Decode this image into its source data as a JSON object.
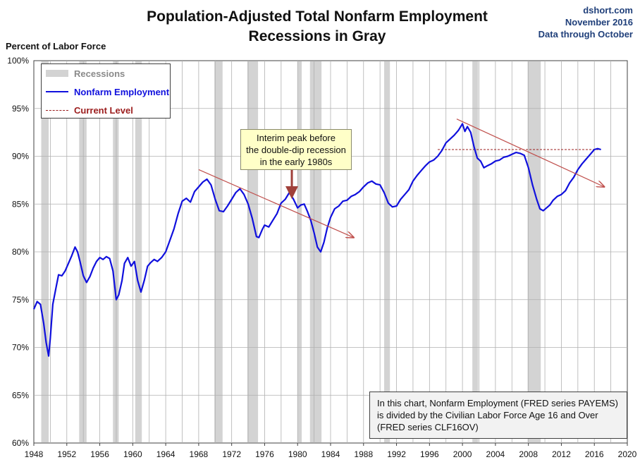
{
  "header": {
    "title_line1": "Population-Adjusted Total Nonfarm Employment",
    "title_line2": "Recessions in Gray",
    "source_line1": "dshort.com",
    "source_line2": "November 2016",
    "source_line3": "Data through October"
  },
  "note": {
    "line1": "In this chart, Nonfarm Employment (FRED series PAYEMS)",
    "line2": "is divided by the Civilian Labor Force Age 16 and Over",
    "line3": "(FRED series CLF16OV)"
  },
  "callout": {
    "line1": "Interim peak before",
    "line2": "the double-dip recession",
    "line3": "in the early 1980s"
  },
  "colors": {
    "series": "#1010dd",
    "recession": "#d3d3d3",
    "current_level": "#9b1c1c",
    "trend_arrow": "#c0504d",
    "callout_arrow": "#a0403a",
    "grid": "#b0b0b0",
    "callout_bg": "#ffffc8"
  },
  "chart_data": {
    "type": "line",
    "title": "Population-Adjusted Total Nonfarm Employment",
    "subtitle": "Recessions in Gray",
    "ylabel": "Percent of Labor Force",
    "xlabel": "",
    "xlim": [
      1948,
      2020
    ],
    "ylim": [
      60,
      100
    ],
    "x_ticks": [
      "1948",
      "1952",
      "1956",
      "1960",
      "1964",
      "1968",
      "1972",
      "1976",
      "1980",
      "1984",
      "1988",
      "1992",
      "1996",
      "2000",
      "2004",
      "2008",
      "2012",
      "2016",
      "2020"
    ],
    "y_ticks": [
      "60%",
      "65%",
      "70%",
      "75%",
      "80%",
      "85%",
      "90%",
      "95%",
      "100%"
    ],
    "grid": true,
    "legend_position": "top-left",
    "legend": {
      "recessions": "Recessions",
      "series": "Nonfarm Employment",
      "current": "Current Level"
    },
    "recessions": [
      [
        1948.9,
        1949.8
      ],
      [
        1953.5,
        1954.4
      ],
      [
        1957.6,
        1958.3
      ],
      [
        1960.3,
        1961.1
      ],
      [
        1969.9,
        1970.9
      ],
      [
        1973.9,
        1975.2
      ],
      [
        1980.0,
        1980.5
      ],
      [
        1981.5,
        1982.9
      ],
      [
        1990.5,
        1991.2
      ],
      [
        2001.2,
        2001.9
      ],
      [
        2007.9,
        2009.5
      ]
    ],
    "series": [
      {
        "name": "Nonfarm Employment",
        "x": [
          1948.0,
          1948.4,
          1948.8,
          1949.2,
          1949.5,
          1949.8,
          1950.0,
          1950.3,
          1950.7,
          1951.0,
          1951.4,
          1951.8,
          1952.2,
          1952.6,
          1953.0,
          1953.3,
          1953.6,
          1954.0,
          1954.4,
          1954.8,
          1955.2,
          1955.6,
          1956.0,
          1956.4,
          1956.8,
          1957.2,
          1957.6,
          1958.0,
          1958.3,
          1958.7,
          1959.0,
          1959.4,
          1959.8,
          1960.2,
          1960.6,
          1961.0,
          1961.4,
          1961.8,
          1962.2,
          1962.6,
          1963.0,
          1963.5,
          1964.0,
          1964.5,
          1965.0,
          1965.5,
          1966.0,
          1966.5,
          1967.0,
          1967.5,
          1968.0,
          1968.5,
          1969.0,
          1969.5,
          1970.0,
          1970.5,
          1971.0,
          1971.5,
          1972.0,
          1972.5,
          1973.0,
          1973.5,
          1974.0,
          1974.5,
          1975.0,
          1975.3,
          1975.7,
          1976.0,
          1976.5,
          1977.0,
          1977.5,
          1978.0,
          1978.5,
          1979.0,
          1979.5,
          1980.0,
          1980.4,
          1980.8,
          1981.2,
          1981.6,
          1982.0,
          1982.4,
          1982.8,
          1983.2,
          1983.6,
          1984.0,
          1984.5,
          1985.0,
          1985.5,
          1986.0,
          1986.5,
          1987.0,
          1987.5,
          1988.0,
          1988.5,
          1989.0,
          1989.5,
          1990.0,
          1990.5,
          1991.0,
          1991.5,
          1992.0,
          1992.5,
          1993.0,
          1993.5,
          1994.0,
          1994.5,
          1995.0,
          1995.5,
          1996.0,
          1996.5,
          1997.0,
          1997.5,
          1998.0,
          1998.5,
          1999.0,
          1999.5,
          2000.0,
          2000.3,
          2000.6,
          2001.0,
          2001.4,
          2001.8,
          2002.2,
          2002.6,
          2003.0,
          2003.5,
          2004.0,
          2004.5,
          2005.0,
          2005.5,
          2006.0,
          2006.5,
          2007.0,
          2007.5,
          2008.0,
          2008.5,
          2009.0,
          2009.4,
          2009.8,
          2010.2,
          2010.6,
          2011.0,
          2011.5,
          2012.0,
          2012.5,
          2013.0,
          2013.5,
          2014.0,
          2014.5,
          2015.0,
          2015.5,
          2016.0,
          2016.4,
          2016.8
        ],
        "y": [
          74.0,
          74.8,
          74.5,
          72.5,
          70.5,
          69.1,
          71.0,
          74.5,
          76.3,
          77.6,
          77.5,
          78.0,
          78.8,
          79.6,
          80.5,
          80.0,
          79.0,
          77.5,
          76.8,
          77.4,
          78.3,
          79.0,
          79.4,
          79.2,
          79.5,
          79.3,
          78.0,
          75.0,
          75.5,
          77.0,
          78.8,
          79.4,
          78.5,
          79.0,
          77.0,
          75.8,
          77.0,
          78.5,
          78.9,
          79.2,
          79.0,
          79.4,
          80.0,
          81.2,
          82.4,
          84.0,
          85.3,
          85.6,
          85.2,
          86.3,
          86.8,
          87.3,
          87.6,
          87.0,
          85.5,
          84.3,
          84.2,
          84.8,
          85.5,
          86.2,
          86.6,
          86.0,
          85.0,
          83.5,
          81.6,
          81.5,
          82.3,
          82.8,
          82.6,
          83.3,
          84.0,
          85.1,
          85.5,
          86.2,
          85.5,
          84.6,
          84.9,
          85.0,
          84.2,
          83.3,
          82.0,
          80.5,
          80.0,
          81.0,
          82.5,
          83.6,
          84.5,
          84.8,
          85.3,
          85.4,
          85.8,
          86.0,
          86.3,
          86.8,
          87.2,
          87.4,
          87.1,
          87.0,
          86.2,
          85.1,
          84.7,
          84.8,
          85.5,
          86.0,
          86.5,
          87.4,
          88.0,
          88.5,
          89.0,
          89.4,
          89.6,
          90.0,
          90.6,
          91.4,
          91.8,
          92.2,
          92.7,
          93.4,
          92.6,
          93.1,
          92.5,
          91.0,
          89.8,
          89.5,
          88.8,
          89.0,
          89.2,
          89.5,
          89.6,
          89.9,
          90.0,
          90.2,
          90.4,
          90.3,
          90.1,
          88.8,
          87.0,
          85.5,
          84.5,
          84.3,
          84.6,
          84.9,
          85.4,
          85.8,
          86.0,
          86.4,
          87.2,
          87.8,
          88.6,
          89.2,
          89.7,
          90.2,
          90.7,
          90.8,
          90.7
        ]
      }
    ],
    "current_level": {
      "value": 90.7,
      "x_start": 1997
    },
    "trend_lines": [
      {
        "x1": 1968.0,
        "y1": 88.6,
        "x2": 1986.8,
        "y2": 81.5
      },
      {
        "x1": 1999.3,
        "y1": 93.9,
        "x2": 2017.2,
        "y2": 86.8
      }
    ],
    "callout_arrow": {
      "x": 1979.3,
      "y_from": 88.9,
      "y_to": 86.2
    }
  }
}
